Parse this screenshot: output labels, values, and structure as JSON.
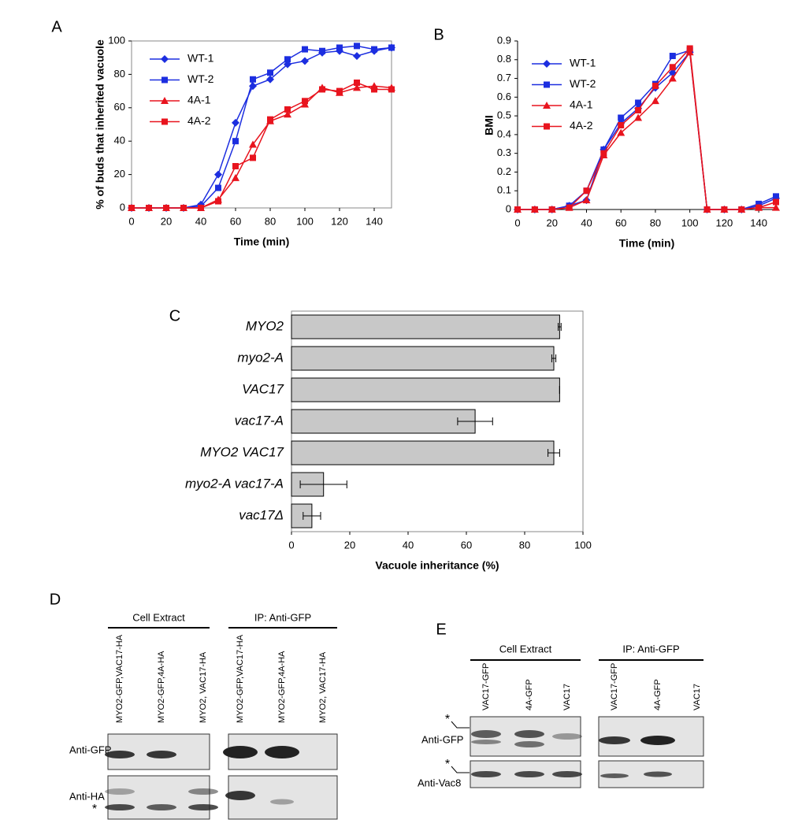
{
  "chart_data": [
    {
      "type": "line",
      "panel": "A",
      "xlabel": "Time (min)",
      "ylabel": "% of buds that inherited vacuole",
      "x": [
        0,
        10,
        20,
        30,
        40,
        50,
        60,
        70,
        80,
        90,
        100,
        110,
        120,
        130,
        140,
        150
      ],
      "xlim": [
        0,
        150
      ],
      "xticks": [
        0,
        20,
        40,
        60,
        80,
        100,
        120,
        140
      ],
      "ylim": [
        0,
        100
      ],
      "yticks": [
        0,
        20,
        40,
        60,
        80,
        100
      ],
      "legend": "upper left",
      "frame": true,
      "series": [
        {
          "name": "WT-1",
          "color": "#1c2ee0",
          "marker": "diamond",
          "values": [
            0,
            0,
            0,
            0,
            2,
            20,
            51,
            73,
            77,
            86,
            88,
            93,
            94,
            91,
            94,
            96
          ]
        },
        {
          "name": "WT-2",
          "color": "#1c2ee0",
          "marker": "square",
          "values": [
            0,
            0,
            0,
            0,
            1,
            12,
            40,
            77,
            81,
            89,
            95,
            94,
            96,
            97,
            95,
            96
          ]
        },
        {
          "name": "4A-1",
          "color": "#e8141e",
          "marker": "triangle",
          "values": [
            0,
            0,
            0,
            0,
            0,
            5,
            18,
            38,
            52,
            56,
            62,
            72,
            69,
            72,
            73,
            72
          ]
        },
        {
          "name": "4A-2",
          "color": "#e8141e",
          "marker": "square",
          "values": [
            0,
            0,
            0,
            0,
            0,
            4,
            25,
            30,
            53,
            59,
            64,
            71,
            70,
            75,
            71,
            71
          ]
        }
      ]
    },
    {
      "type": "line",
      "panel": "B",
      "xlabel": "Time (min)",
      "ylabel": "BMI",
      "x": [
        0,
        10,
        20,
        30,
        40,
        50,
        60,
        70,
        80,
        90,
        100,
        110,
        120,
        130,
        140,
        150
      ],
      "xlim": [
        0,
        150
      ],
      "xticks": [
        0,
        20,
        40,
        60,
        80,
        100,
        120,
        140
      ],
      "ylim": [
        0,
        0.9
      ],
      "yticks": [
        0,
        0.1,
        0.2,
        0.3,
        0.4,
        0.5,
        0.6,
        0.7,
        0.8,
        0.9
      ],
      "legend": "upper left",
      "frame": false,
      "series": [
        {
          "name": "WT-1",
          "color": "#1c2ee0",
          "marker": "diamond",
          "values": [
            0,
            0,
            0,
            0.02,
            0.05,
            0.32,
            0.46,
            0.54,
            0.65,
            0.73,
            0.84,
            0,
            0,
            0,
            0.02,
            0.06
          ]
        },
        {
          "name": "WT-2",
          "color": "#1c2ee0",
          "marker": "square",
          "values": [
            0,
            0,
            0,
            0.02,
            0.1,
            0.32,
            0.49,
            0.57,
            0.67,
            0.82,
            0.85,
            0,
            0,
            0,
            0.03,
            0.07
          ]
        },
        {
          "name": "4A-1",
          "color": "#e8141e",
          "marker": "triangle",
          "values": [
            0,
            0,
            0,
            0.01,
            0.05,
            0.29,
            0.41,
            0.49,
            0.58,
            0.7,
            0.84,
            0,
            0,
            0,
            0.01,
            0.01
          ]
        },
        {
          "name": "4A-2",
          "color": "#e8141e",
          "marker": "square",
          "values": [
            0,
            0,
            0,
            0.01,
            0.1,
            0.3,
            0.45,
            0.53,
            0.66,
            0.76,
            0.86,
            0,
            0,
            0,
            0.01,
            0.04
          ]
        }
      ]
    },
    {
      "type": "hbar",
      "panel": "C",
      "xlabel": "Vacuole inheritance (%)",
      "categories": [
        "MYO2",
        "myo2-A",
        "VAC17",
        "vac17-A",
        "MYO2 VAC17",
        "myo2-A vac17-A",
        "vac17Δ"
      ],
      "values": [
        92,
        90,
        92,
        63,
        90,
        11,
        7
      ],
      "errors": [
        0.5,
        0.7,
        0,
        6,
        2,
        8,
        3
      ],
      "color": "#c8c8c8",
      "xlim": [
        0,
        100
      ],
      "xticks": [
        0,
        20,
        40,
        60,
        80,
        100
      ],
      "frame": true
    }
  ],
  "blots": [
    {
      "panel": "D",
      "groups": [
        {
          "header": "Cell Extract",
          "lanes": [
            "MYO2-GFP,VAC17-HA",
            "MYO2-GFP,4A-HA",
            "MYO2, VAC17-HA"
          ]
        },
        {
          "header": "IP: Anti-GFP",
          "lanes": [
            "MYO2-GFP,VAC17-HA",
            "MYO2-GFP,4A-HA",
            "MYO2, VAC17-HA"
          ]
        }
      ],
      "rows": [
        "Anti-GFP",
        "Anti-HA"
      ],
      "asterisk": "*"
    },
    {
      "panel": "E",
      "groups": [
        {
          "header": "Cell Extract",
          "lanes": [
            "VAC17-GFP",
            "4A-GFP",
            "VAC17"
          ]
        },
        {
          "header": "IP: Anti-GFP",
          "lanes": [
            "VAC17-GFP",
            "4A-GFP",
            "VAC17"
          ]
        }
      ],
      "rows": [
        "Anti-GFP",
        "Anti-Vac8"
      ],
      "asterisk": "*"
    }
  ]
}
